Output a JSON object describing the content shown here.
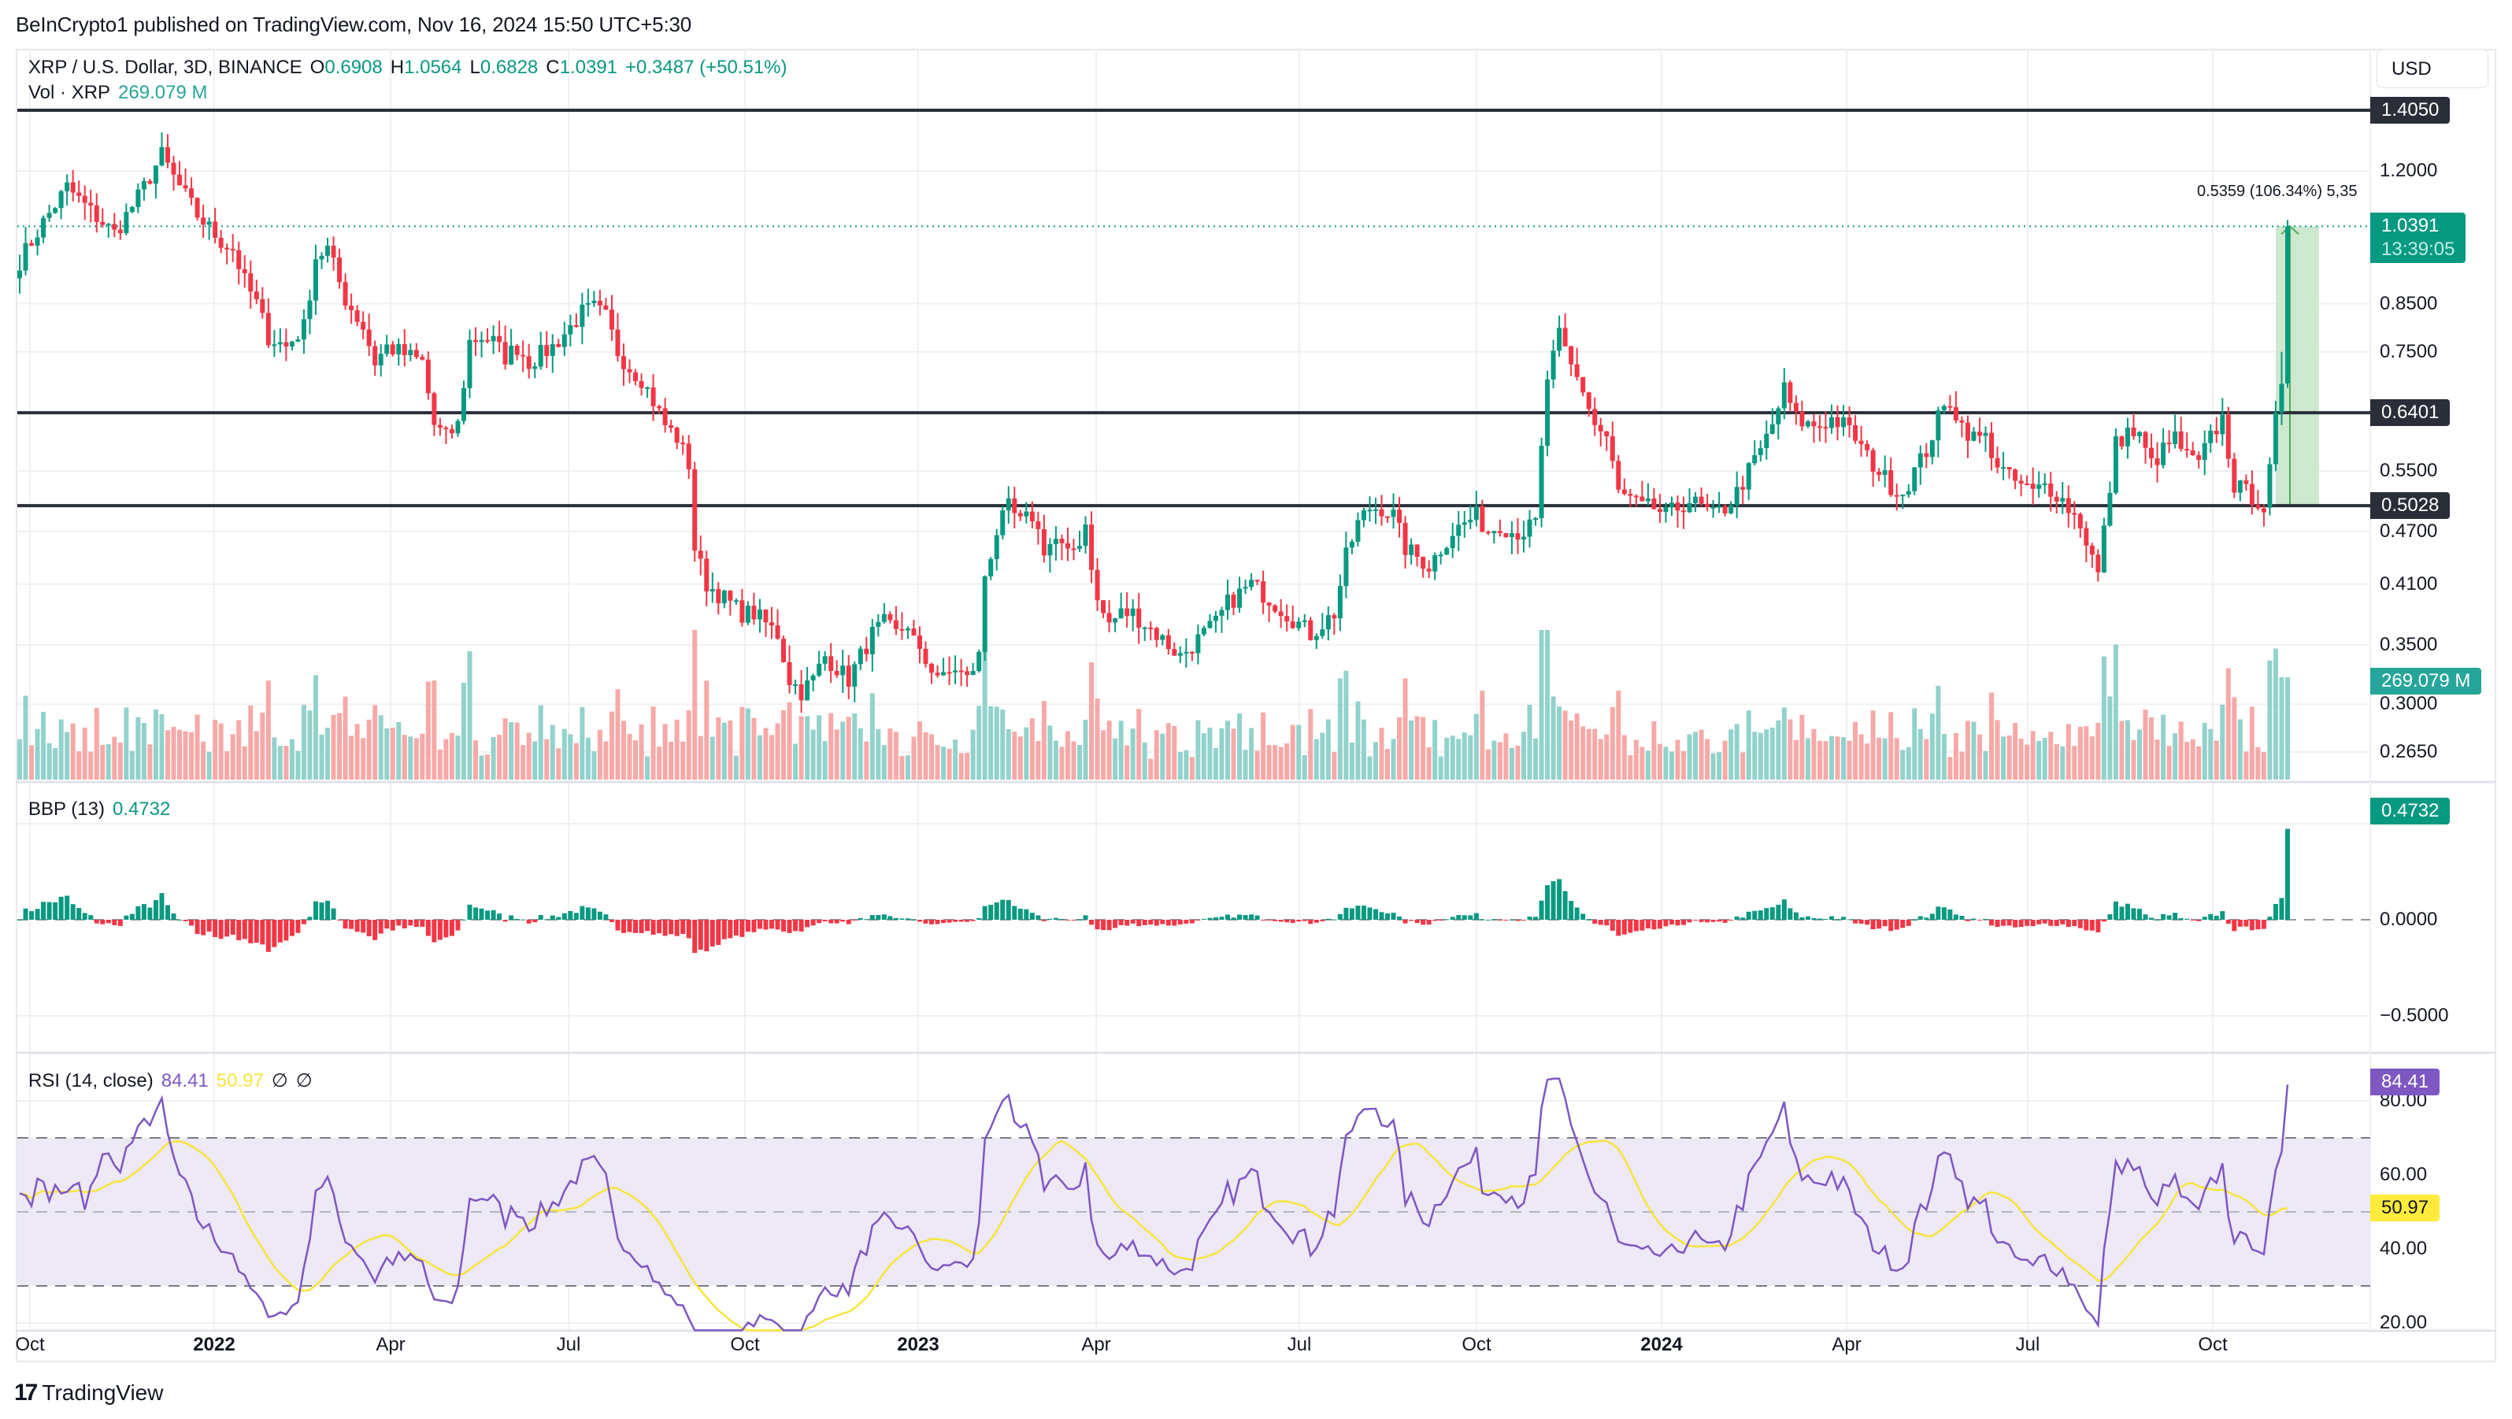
{
  "header": {
    "published": "BeInCrypto1 published on TradingView.com, Nov 16, 2024 15:50 UTC+5:30"
  },
  "legend": {
    "symbol": "XRP / U.S. Dollar, 3D, BINANCE",
    "o_label": "O",
    "o": "0.6908",
    "h_label": "H",
    "h": "1.0564",
    "l_label": "L",
    "l": "0.6828",
    "c_label": "C",
    "c": "1.0391",
    "change": "+0.3487 (+50.51%)",
    "vol_label": "Vol · XRP",
    "vol": "269.079 M"
  },
  "bbp_legend": {
    "label": "BBP (13)",
    "value": "0.4732"
  },
  "rsi_legend": {
    "label": "RSI (14, close)",
    "value": "84.41",
    "ma": "50.97",
    "n1": "∅",
    "n2": "∅"
  },
  "price_axis": {
    "currency": "USD",
    "ticks": [
      {
        "label": "1.2000",
        "value": 1.2
      },
      {
        "label": "0.8500",
        "value": 0.85
      },
      {
        "label": "0.7500",
        "value": 0.75
      },
      {
        "label": "0.5500",
        "value": 0.55
      },
      {
        "label": "0.4700",
        "value": 0.47
      },
      {
        "label": "0.4100",
        "value": 0.41
      },
      {
        "label": "0.3500",
        "value": 0.35
      },
      {
        "label": "0.3000",
        "value": 0.3
      },
      {
        "label": "0.2650",
        "value": 0.265
      }
    ],
    "levels": [
      {
        "label": "1.4050",
        "value": 1.405
      },
      {
        "label": "0.6401",
        "value": 0.6401
      },
      {
        "label": "0.5028",
        "value": 0.5028
      }
    ],
    "last_price": {
      "label": "1.0391",
      "value": 1.0391,
      "countdown": "13:39:05"
    },
    "volume_tag": "269.079 M"
  },
  "bbp_axis": {
    "ticks": [
      {
        "label": "0.0000",
        "value": 0
      },
      {
        "label": "−0.5000",
        "value": -0.5
      }
    ],
    "last": "0.4732"
  },
  "rsi_axis": {
    "ticks": [
      {
        "label": "80.00",
        "value": 80
      },
      {
        "label": "60.00",
        "value": 60
      },
      {
        "label": "40.00",
        "value": 40
      },
      {
        "label": "20.00",
        "value": 20
      }
    ],
    "last_rsi": "84.41",
    "last_ma": "50.97",
    "upper_band": 70,
    "mid": 50,
    "lower_band": 30
  },
  "time_axis": [
    {
      "label": "Oct",
      "x": 38,
      "bold": false
    },
    {
      "label": "2022",
      "x": 272,
      "bold": true
    },
    {
      "label": "Apr",
      "x": 496,
      "bold": false
    },
    {
      "label": "Jul",
      "x": 722,
      "bold": false
    },
    {
      "label": "Oct",
      "x": 946,
      "bold": false
    },
    {
      "label": "2023",
      "x": 1166,
      "bold": true
    },
    {
      "label": "Apr",
      "x": 1392,
      "bold": false
    },
    {
      "label": "Jul",
      "x": 1650,
      "bold": false
    },
    {
      "label": "Oct",
      "x": 1875,
      "bold": false
    },
    {
      "label": "2024",
      "x": 2110,
      "bold": true
    },
    {
      "label": "Apr",
      "x": 2345,
      "bold": false
    },
    {
      "label": "Jul",
      "x": 2575,
      "bold": false
    },
    {
      "label": "Oct",
      "x": 2810,
      "bold": false
    }
  ],
  "measure": {
    "text": "0.5359 (106.34%) 5,35"
  },
  "footer": {
    "logo_mark": "17",
    "logo_text": "TradingView"
  },
  "colors": {
    "up": "#089981",
    "down": "#f23645",
    "vol_up": "#92d2cc",
    "vol_down": "#f7a9a7",
    "rsi": "#7e57c2",
    "rsi_ma": "#f7e53a",
    "rsi_band": "#ede9f7",
    "level": "#2a2e39",
    "measure_fill": "#cde8cf",
    "measure_line": "#4caf50",
    "grid": "#f0f0f3"
  },
  "chart_data": {
    "type": "candlestick",
    "title": "XRP / U.S. Dollar, 3D, BINANCE",
    "scale": "log",
    "ylim": [
      0.245,
      1.55
    ],
    "candle_count": 380,
    "x_first": 25,
    "x_step": 7.6,
    "close_waypoints": [
      [
        0,
        0.95
      ],
      [
        4,
        1.05
      ],
      [
        8,
        1.15
      ],
      [
        12,
        1.08
      ],
      [
        16,
        1.02
      ],
      [
        20,
        1.12
      ],
      [
        24,
        1.25
      ],
      [
        26,
        1.18
      ],
      [
        30,
        1.07
      ],
      [
        34,
        1.0
      ],
      [
        36,
        0.98
      ],
      [
        38,
        0.9
      ],
      [
        40,
        0.85
      ],
      [
        42,
        0.78
      ],
      [
        45,
        0.76
      ],
      [
        48,
        0.8
      ],
      [
        50,
        0.96
      ],
      [
        52,
        0.98
      ],
      [
        55,
        0.86
      ],
      [
        58,
        0.8
      ],
      [
        60,
        0.73
      ],
      [
        62,
        0.76
      ],
      [
        66,
        0.74
      ],
      [
        68,
        0.73
      ],
      [
        70,
        0.62
      ],
      [
        72,
        0.6
      ],
      [
        74,
        0.62
      ],
      [
        76,
        0.77
      ],
      [
        78,
        0.78
      ],
      [
        80,
        0.77
      ],
      [
        82,
        0.74
      ],
      [
        84,
        0.76
      ],
      [
        86,
        0.73
      ],
      [
        90,
        0.76
      ],
      [
        93,
        0.8
      ],
      [
        95,
        0.83
      ],
      [
        97,
        0.84
      ],
      [
        99,
        0.82
      ],
      [
        101,
        0.75
      ],
      [
        103,
        0.72
      ],
      [
        105,
        0.7
      ],
      [
        107,
        0.66
      ],
      [
        109,
        0.62
      ],
      [
        111,
        0.6
      ],
      [
        113,
        0.56
      ],
      [
        114,
        0.45
      ],
      [
        116,
        0.41
      ],
      [
        118,
        0.4
      ],
      [
        120,
        0.39
      ],
      [
        122,
        0.38
      ],
      [
        124,
        0.38
      ],
      [
        126,
        0.37
      ],
      [
        128,
        0.36
      ],
      [
        130,
        0.32
      ],
      [
        132,
        0.31
      ],
      [
        134,
        0.32
      ],
      [
        136,
        0.34
      ],
      [
        138,
        0.33
      ],
      [
        140,
        0.32
      ],
      [
        142,
        0.34
      ],
      [
        144,
        0.36
      ],
      [
        146,
        0.37
      ],
      [
        148,
        0.36
      ],
      [
        150,
        0.37
      ],
      [
        152,
        0.34
      ],
      [
        154,
        0.33
      ],
      [
        156,
        0.32
      ],
      [
        158,
        0.33
      ],
      [
        160,
        0.32
      ],
      [
        162,
        0.34
      ],
      [
        163,
        0.42
      ],
      [
        165,
        0.47
      ],
      [
        167,
        0.5
      ],
      [
        169,
        0.48
      ],
      [
        171,
        0.49
      ],
      [
        173,
        0.45
      ],
      [
        175,
        0.46
      ],
      [
        177,
        0.44
      ],
      [
        179,
        0.46
      ],
      [
        180,
        0.48
      ],
      [
        182,
        0.39
      ],
      [
        184,
        0.37
      ],
      [
        186,
        0.38
      ],
      [
        188,
        0.38
      ],
      [
        190,
        0.37
      ],
      [
        192,
        0.36
      ],
      [
        194,
        0.35
      ],
      [
        196,
        0.34
      ],
      [
        198,
        0.35
      ],
      [
        200,
        0.36
      ],
      [
        202,
        0.37
      ],
      [
        204,
        0.39
      ],
      [
        206,
        0.4
      ],
      [
        208,
        0.41
      ],
      [
        210,
        0.4
      ],
      [
        212,
        0.39
      ],
      [
        214,
        0.38
      ],
      [
        216,
        0.37
      ],
      [
        218,
        0.36
      ],
      [
        220,
        0.37
      ],
      [
        222,
        0.38
      ],
      [
        224,
        0.44
      ],
      [
        226,
        0.48
      ],
      [
        228,
        0.5
      ],
      [
        230,
        0.5
      ],
      [
        232,
        0.49
      ],
      [
        234,
        0.45
      ],
      [
        236,
        0.44
      ],
      [
        238,
        0.43
      ],
      [
        240,
        0.45
      ],
      [
        242,
        0.47
      ],
      [
        244,
        0.48
      ],
      [
        246,
        0.49
      ],
      [
        248,
        0.47
      ],
      [
        250,
        0.48
      ],
      [
        252,
        0.47
      ],
      [
        254,
        0.47
      ],
      [
        256,
        0.48
      ],
      [
        258,
        0.7
      ],
      [
        260,
        0.78
      ],
      [
        262,
        0.72
      ],
      [
        264,
        0.68
      ],
      [
        266,
        0.62
      ],
      [
        268,
        0.6
      ],
      [
        270,
        0.52
      ],
      [
        272,
        0.51
      ],
      [
        274,
        0.5
      ],
      [
        276,
        0.5
      ],
      [
        278,
        0.49
      ],
      [
        280,
        0.5
      ],
      [
        282,
        0.51
      ],
      [
        284,
        0.5
      ],
      [
        286,
        0.49
      ],
      [
        288,
        0.5
      ],
      [
        290,
        0.52
      ],
      [
        292,
        0.55
      ],
      [
        294,
        0.58
      ],
      [
        296,
        0.62
      ],
      [
        298,
        0.68
      ],
      [
        300,
        0.63
      ],
      [
        302,
        0.62
      ],
      [
        304,
        0.62
      ],
      [
        306,
        0.63
      ],
      [
        308,
        0.62
      ],
      [
        310,
        0.6
      ],
      [
        312,
        0.57
      ],
      [
        314,
        0.55
      ],
      [
        316,
        0.53
      ],
      [
        318,
        0.52
      ],
      [
        320,
        0.55
      ],
      [
        322,
        0.58
      ],
      [
        324,
        0.63
      ],
      [
        326,
        0.66
      ],
      [
        328,
        0.62
      ],
      [
        330,
        0.6
      ],
      [
        332,
        0.6
      ],
      [
        334,
        0.56
      ],
      [
        336,
        0.54
      ],
      [
        338,
        0.53
      ],
      [
        340,
        0.52
      ],
      [
        342,
        0.53
      ],
      [
        344,
        0.52
      ],
      [
        346,
        0.5
      ],
      [
        348,
        0.48
      ],
      [
        350,
        0.44
      ],
      [
        351,
        0.42
      ],
      [
        352,
        0.47
      ],
      [
        354,
        0.59
      ],
      [
        356,
        0.61
      ],
      [
        358,
        0.6
      ],
      [
        360,
        0.56
      ],
      [
        362,
        0.58
      ],
      [
        364,
        0.6
      ],
      [
        366,
        0.57
      ],
      [
        368,
        0.56
      ],
      [
        370,
        0.6
      ],
      [
        372,
        0.63
      ],
      [
        374,
        0.53
      ],
      [
        376,
        0.52
      ],
      [
        378,
        0.51
      ],
      [
        379,
        0.5
      ]
    ],
    "final_candles": [
      {
        "o": 0.5,
        "h": 0.57,
        "l": 0.49,
        "c": 0.56
      },
      {
        "o": 0.56,
        "h": 0.66,
        "l": 0.55,
        "c": 0.64
      },
      {
        "o": 0.64,
        "h": 0.75,
        "l": 0.62,
        "c": 0.69
      },
      {
        "o": 0.6908,
        "h": 1.0564,
        "l": 0.6828,
        "c": 1.0391
      }
    ],
    "series": [
      {
        "name": "Volume",
        "last": "269.079 M"
      },
      {
        "name": "BBP (13)",
        "last": 0.4732,
        "ylim": [
          -0.6,
          0.55
        ]
      },
      {
        "name": "RSI (14, close)",
        "last": 84.41,
        "ma_last": 50.97,
        "ylim": [
          15,
          88
        ]
      }
    ]
  }
}
